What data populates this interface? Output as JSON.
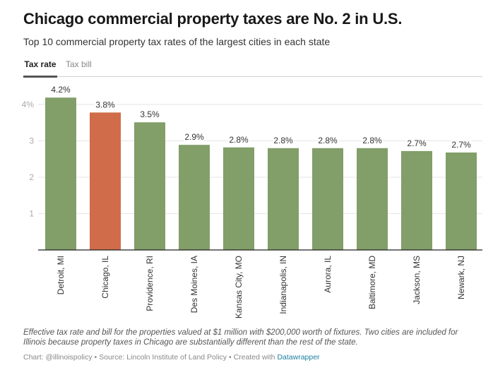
{
  "header": {
    "title": "Chicago commercial property taxes are No. 2 in U.S.",
    "subtitle": "Top 10 commercial property tax rates of the largest cities in each state"
  },
  "tabs": [
    {
      "label": "Tax rate",
      "active": true
    },
    {
      "label": "Tax bill",
      "active": false
    }
  ],
  "chart_data": {
    "type": "bar",
    "title": "Chicago commercial property taxes are No. 2 in U.S.",
    "subtitle": "Top 10 commercial property tax rates of the largest cities in each state",
    "xlabel": "",
    "ylabel": "",
    "categories": [
      "Detroit, MI",
      "Chicago, IL",
      "Providence, RI",
      "Des Moines, IA",
      "Kansas City, MO",
      "Indianapolis, IN",
      "Aurora, IL",
      "Baltimore, MD",
      "Jackson, MS",
      "Newark, NJ"
    ],
    "values": [
      4.19,
      3.78,
      3.51,
      2.89,
      2.82,
      2.8,
      2.8,
      2.8,
      2.72,
      2.68
    ],
    "data_labels": [
      "4.2%",
      "3.8%",
      "3.5%",
      "2.9%",
      "2.8%",
      "2.8%",
      "2.8%",
      "2.8%",
      "2.7%",
      "2.7%"
    ],
    "highlight": "Chicago, IL",
    "colors": {
      "default": "#829e69",
      "highlight": "#d06c4a"
    },
    "ylim": [
      0,
      4
    ],
    "yticks": [
      1,
      2,
      3,
      4
    ],
    "ytick_labels": [
      "1",
      "2",
      "3",
      "4%"
    ],
    "grid": true,
    "legend": "none"
  },
  "footer": {
    "notes": "Effective tax rate and bill for the properties valued at $1 million with $200,000 worth of fixtures. Two cities are included for Illinois because property taxes in Chicago are substantially different than the rest of the state.",
    "byline_prefix": "Chart: @illinoispolicy • Source: Lincoln Institute of Land Policy • Created with ",
    "byline_link": "Datawrapper"
  }
}
